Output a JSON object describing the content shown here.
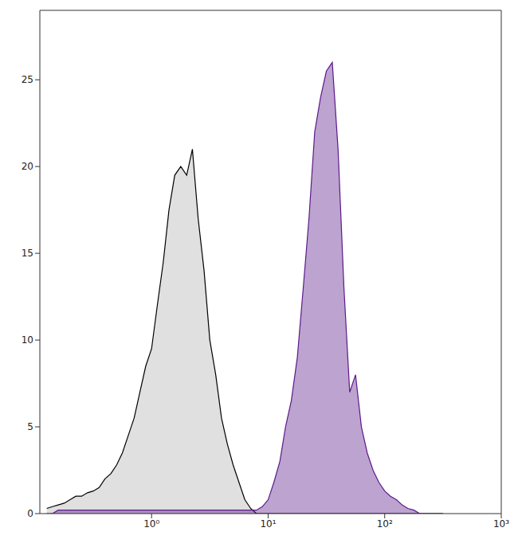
{
  "chart_data": {
    "type": "area",
    "log": "x",
    "grid": false,
    "x": [
      0.126,
      0.141,
      0.158,
      0.178,
      0.2,
      0.224,
      0.251,
      0.282,
      0.316,
      0.355,
      0.398,
      0.447,
      0.501,
      0.562,
      0.631,
      0.708,
      0.794,
      0.891,
      1,
      1.12,
      1.26,
      1.41,
      1.58,
      1.78,
      2,
      2.24,
      2.51,
      2.82,
      3.16,
      3.55,
      3.98,
      4.47,
      5.01,
      5.62,
      6.31,
      7.08,
      7.94,
      8.91,
      10,
      11.2,
      12.6,
      14.1,
      15.8,
      17.8,
      20,
      22.4,
      25.1,
      28.2,
      31.6,
      35.5,
      39.8,
      44.7,
      50.1,
      56.2,
      63.1,
      70.8,
      79.4,
      89.1,
      100,
      112,
      126,
      141,
      158,
      178,
      200,
      224,
      251,
      282,
      316
    ],
    "series": [
      {
        "color": "#000000",
        "values": [
          0.3,
          0.4,
          0.5,
          0.6,
          0.8,
          1,
          1,
          1.2,
          1.3,
          1.5,
          2,
          2.3,
          2.8,
          3.5,
          4.5,
          5.5,
          7,
          8.5,
          9.5,
          12,
          14.5,
          17.5,
          19.5,
          20,
          19.5,
          21,
          17,
          14,
          10,
          8,
          5.5,
          4,
          2.8,
          1.8,
          0.8,
          0.3,
          0,
          0,
          0,
          0,
          0,
          0,
          0,
          0,
          0,
          0,
          0,
          0,
          0,
          0,
          0,
          0,
          0,
          0,
          0,
          0,
          0,
          0,
          0,
          0,
          0,
          0,
          0,
          0,
          0,
          0,
          0,
          0,
          0
        ]
      },
      {
        "color": "#5b1a8a",
        "values": [
          0,
          0,
          0.2,
          0.2,
          0.2,
          0.2,
          0.2,
          0.2,
          0.2,
          0.2,
          0.2,
          0.2,
          0.2,
          0.2,
          0.2,
          0.2,
          0.2,
          0.2,
          0.2,
          0.2,
          0.2,
          0.2,
          0.2,
          0.2,
          0.2,
          0.2,
          0.2,
          0.2,
          0.2,
          0.2,
          0.2,
          0.2,
          0.2,
          0.2,
          0.2,
          0.2,
          0.2,
          0.4,
          0.8,
          1.8,
          3,
          5,
          6.5,
          9,
          13,
          17,
          22,
          24,
          25.5,
          26,
          21,
          13,
          7,
          8,
          5,
          3.5,
          2.5,
          1.8,
          1.3,
          1,
          0.8,
          0.5,
          0.3,
          0.2,
          0,
          0,
          0,
          0,
          0
        ]
      }
    ],
    "xlim": [
      0.11,
      1000
    ],
    "xticks": [
      {
        "value": 1,
        "label": "10⁰"
      },
      {
        "value": 10,
        "label": "10¹"
      },
      {
        "value": 100,
        "label": "10²"
      },
      {
        "value": 1000,
        "label": "10³"
      }
    ],
    "ylim": [
      0,
      29
    ],
    "yticks": [
      0,
      5,
      10,
      15,
      20,
      25
    ]
  }
}
